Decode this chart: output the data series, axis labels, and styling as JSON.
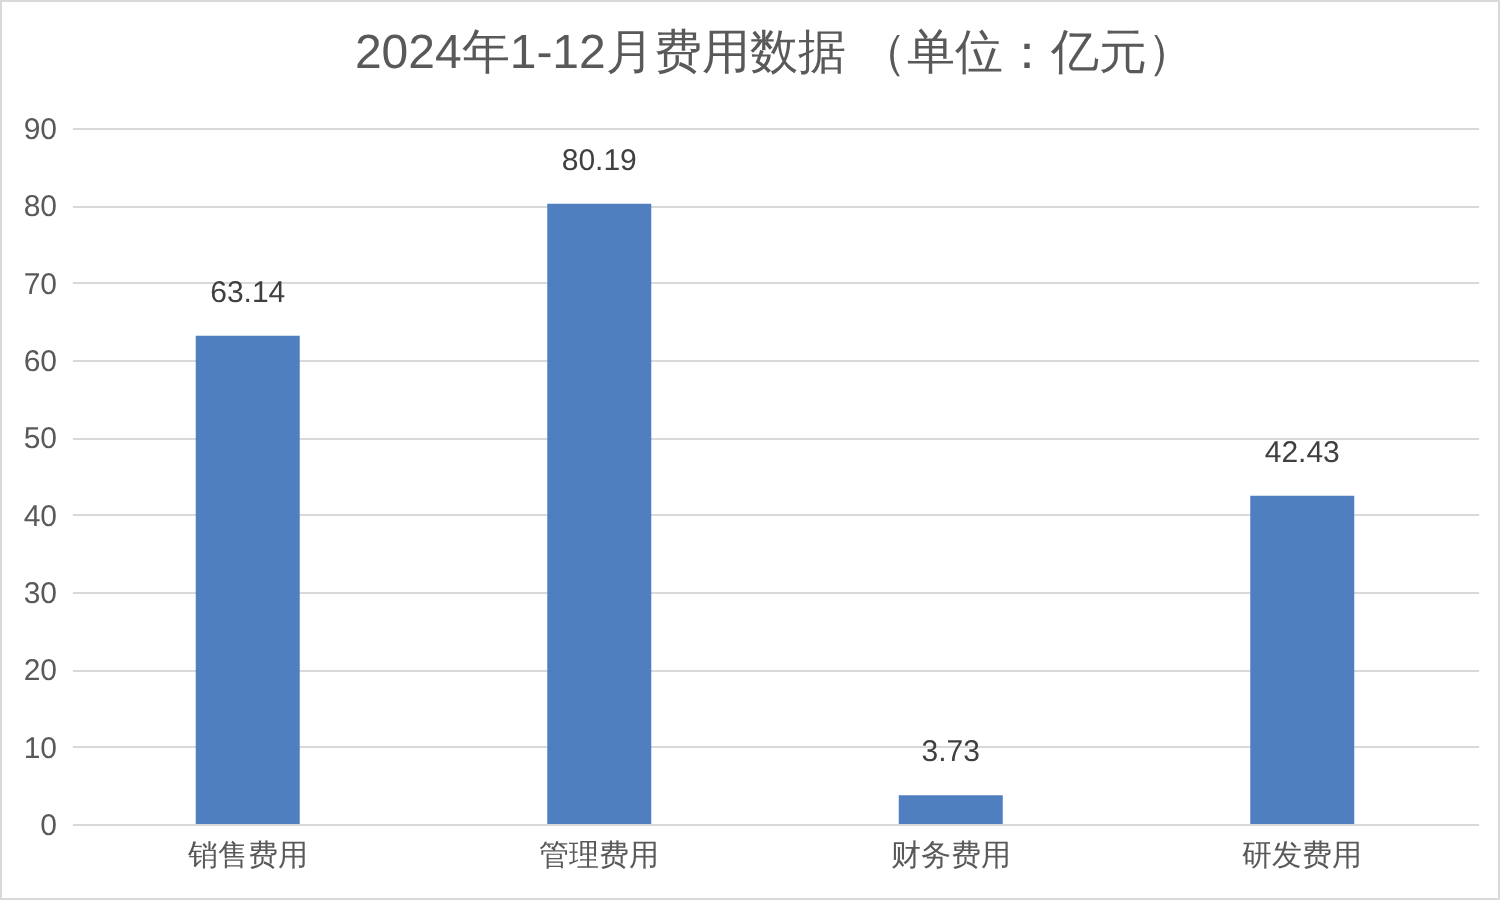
{
  "chart_data": {
    "type": "bar",
    "title": "2024年1-12月费用数据 （单位：亿元）",
    "categories": [
      "销售费用",
      "管理费用",
      "财务费用",
      "研发费用"
    ],
    "values": [
      63.14,
      80.19,
      3.73,
      42.43
    ],
    "color": "#4f7fbf",
    "ylim": [
      0,
      90
    ],
    "yticks": [
      0,
      10,
      20,
      30,
      40,
      50,
      60,
      70,
      80,
      90
    ],
    "grid": "y",
    "data_labels": true
  }
}
